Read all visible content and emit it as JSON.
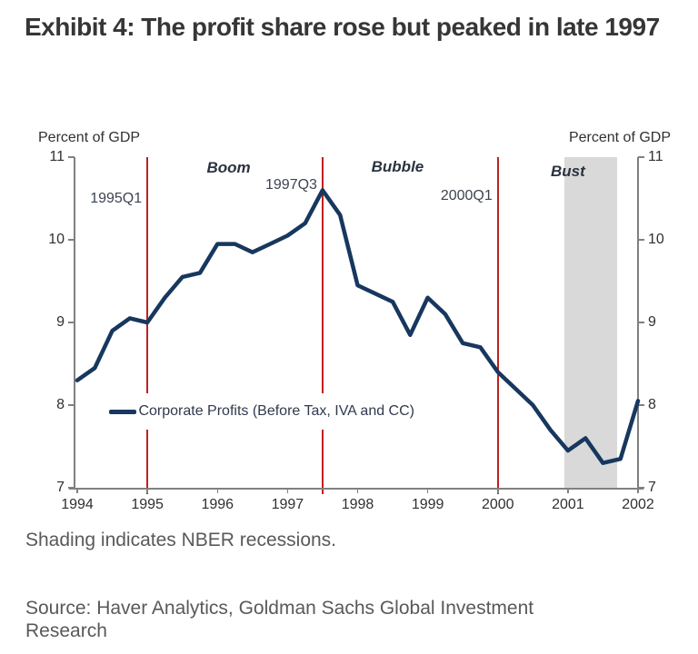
{
  "title": "Exhibit 4: The profit share rose but peaked in late 1997",
  "footnote": "Shading indicates NBER recessions.",
  "source": "Source: Haver Analytics, Goldman Sachs Global Investment Research",
  "colors": {
    "title_text": "#363636",
    "tick_text": "#303030",
    "annotation_text": "#3d4450",
    "footer_text": "#595959",
    "axis": "#808080",
    "line": "#17375e",
    "red_line": "#c02020",
    "shading": "#d9d9d9"
  },
  "chart_data": {
    "type": "line",
    "title": "",
    "ylabel_left": "Percent of GDP",
    "ylabel_right": "Percent of GDP",
    "ylim": [
      7,
      11
    ],
    "yticks": [
      11,
      10,
      9,
      8,
      7
    ],
    "xlim": [
      1994,
      2002
    ],
    "xticks": [
      1994,
      1995,
      1996,
      1997,
      1998,
      1999,
      2000,
      2001,
      2002
    ],
    "grid": false,
    "legend_position": "inside-left-middle",
    "series": [
      {
        "name": "Corporate Profits (Before Tax, IVA and CC)",
        "color": "#17375e",
        "x_start": 1994.0,
        "x_step": 0.25,
        "values": [
          8.3,
          8.45,
          8.9,
          9.05,
          9.0,
          9.3,
          9.55,
          9.6,
          9.95,
          9.95,
          9.85,
          9.95,
          10.05,
          10.2,
          10.6,
          10.3,
          9.45,
          9.35,
          9.25,
          8.85,
          9.3,
          9.1,
          8.75,
          8.7,
          8.4,
          8.2,
          8.0,
          7.7,
          7.45,
          7.6,
          7.3,
          7.35,
          8.05
        ]
      }
    ],
    "recession_shading": [
      {
        "from": 2000.95,
        "to": 2001.7
      }
    ],
    "event_lines": [
      {
        "x": 1995.0,
        "label": "1995Q1",
        "label_y": 10.5
      },
      {
        "x": 1997.5,
        "label": "1997Q3",
        "label_y": 10.66
      },
      {
        "x": 2000.0,
        "label": "2000Q1",
        "label_y": 10.53
      }
    ],
    "phase_labels": [
      {
        "text": "Boom",
        "x": 1996.16,
        "y": 10.87
      },
      {
        "text": "Bubble",
        "x": 1998.57,
        "y": 10.88
      },
      {
        "text": "Bust",
        "x": 2001.0,
        "y": 10.82
      }
    ]
  }
}
